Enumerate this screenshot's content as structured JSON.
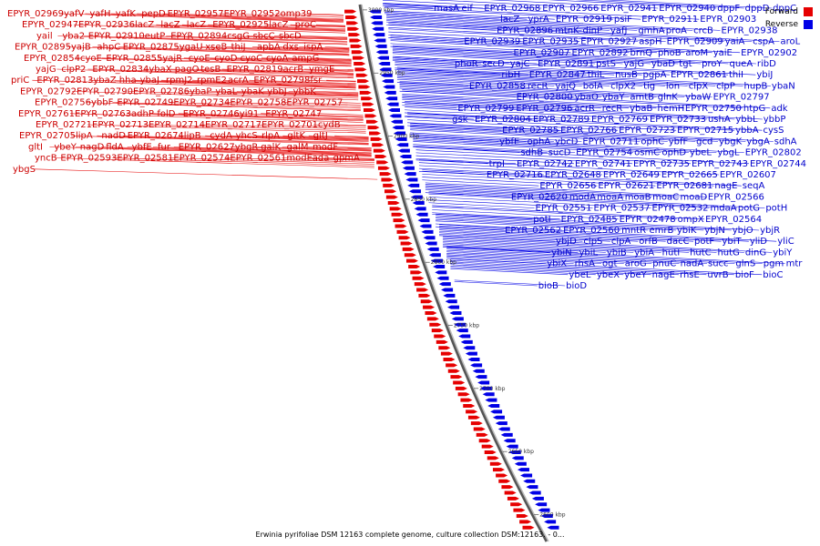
{
  "caption": "Erwinia pyrifoliae DSM 12163 complete genome, culture collection DSM:12163. - 0...",
  "legend": [
    {
      "label": "Forward",
      "color": "#e60000"
    },
    {
      "label": "Reverse",
      "color": "#0000e6"
    }
  ],
  "ticks": [
    "3000 kbp",
    "2950 kbp",
    "2900 kbp",
    "2850 kbp",
    "2800 kbp",
    "2750 kbp",
    "2700 kbp",
    "2650 kbp",
    "2600 kbp"
  ],
  "forward_labels": [
    "EPYR_02969",
    "yafV",
    "yafH",
    "yafK",
    "pepD",
    "EPYR_02957",
    "EPYR_02952",
    "omp39",
    "EPYR_02947",
    "EPYR_02936",
    "lacZ",
    "lacZ",
    "lacZ",
    "EPYR_02925",
    "lacZ",
    "proC",
    "yail",
    "yba2",
    "EPYR_02910",
    "eutP",
    "EPYR_02894",
    "csgG",
    "sbcC",
    "sbcD",
    "EPYR_02895",
    "yajB",
    "ahpC",
    "EPYR_02875",
    "ygaU",
    "xseB",
    "thiJ",
    "apbA",
    "dxs",
    "ispA",
    "EPYR_02854",
    "cyoE",
    "EPYR_02855",
    "yajR",
    "cyoE",
    "cyoD",
    "cyoC",
    "cyoA",
    "ampG",
    "yajG",
    "clpP2",
    "EPYR_02834",
    "ybaX",
    "pagO",
    "tesB",
    "EPYR_02819",
    "acrB",
    "ymgE",
    "priC",
    "EPYR_02813",
    "ybaZ",
    "hha",
    "ybaJ",
    "rpmJ2",
    "rpmE2",
    "acrA",
    "EPYR_02798",
    "fsr",
    "EPYR_02792",
    "EPYR_02790",
    "EPYR_02786",
    "ybaP",
    "ybaL",
    "ybaK",
    "ybbJ",
    "ybbK",
    "EPYR_02756",
    "ybbF",
    "EPYR_02749",
    "EPYR_02734",
    "EPYR_02758",
    "EPYR_02757",
    "EPYR_02761",
    "EPYR_02763",
    "adhP",
    "folD",
    "EPYR_02746",
    "yi91",
    "EPYR_02747",
    "EPYR_02721",
    "EPYR_02713",
    "EPYR_02714",
    "EPYR_02717",
    "EPYR_02701",
    "cydB",
    "EPYR_02705",
    "lipA",
    "nadD",
    "EPYR_02674",
    "lipB",
    "cydA",
    "yhcS",
    "rlpA",
    "gltK",
    "gltJ",
    "gltI",
    "ybeY",
    "nagD",
    "fldA",
    "ybfE",
    "fur",
    "EPYR_02627",
    "ybgR",
    "galK",
    "galM",
    "modF",
    "yncB",
    "EPYR_02593",
    "EPYR_02581",
    "EPYR_02574",
    "EPYR_02561",
    "modE",
    "ada",
    "gpmA",
    "ybgS"
  ],
  "reverse_labels": [
    "masA",
    "eif",
    "EPYR_02968",
    "EPYR_02966",
    "EPYR_02941",
    "EPYR_02940",
    "dppF",
    "dppD",
    "dppC",
    "lacZ",
    "yprA",
    "EPYR_02919",
    "psiF",
    "EPYR_02911",
    "EPYR_02903",
    "EPYR_02896",
    "mtnK",
    "dinP",
    "yafJ",
    "gmhA",
    "proA",
    "crcB",
    "EPYR_02938",
    "EPYR_02939",
    "EPYR_02935",
    "EPYR_02927",
    "aspH",
    "EPYR_02909",
    "yaiA",
    "cspA",
    "aroL",
    "EPYR_02907",
    "EPYR_02892",
    "brnQ",
    "phoB",
    "aroM",
    "yaiE",
    "EPYR_02902",
    "phoR",
    "secD",
    "yajC",
    "EPYR_02891",
    "pstS",
    "yajG",
    "ybaD",
    "tgt",
    "proY",
    "queA",
    "ribD",
    "ribH",
    "EPYR_02847",
    "thiL",
    "nusB",
    "pgpA",
    "EPYR_02861",
    "thiI",
    "ybiJ",
    "EPYR_02858",
    "recR",
    "yajQ",
    "bolA",
    "clpX2",
    "tig",
    "lon",
    "clpX",
    "clpP",
    "hupB",
    "ybaN",
    "EPYR_02800",
    "ybaO",
    "ybaY",
    "amtB",
    "glnK",
    "ybaW",
    "EPYR_02797",
    "EPYR_02799",
    "EPYR_02796",
    "acrR",
    "recR",
    "ybaB",
    "hemH",
    "EPYR_02750",
    "htpG",
    "adk",
    "gsk",
    "EPYR_02804",
    "EPYR_02789",
    "EPYR_02769",
    "EPYR_02733",
    "ushA",
    "ybbL",
    "ybbP",
    "EPYR_02785",
    "EPYR_02766",
    "EPYR_02723",
    "EPYR_02715",
    "ybbA",
    "cysS",
    "ybfE",
    "ophA",
    "ybcD",
    "EPYR_02711",
    "ophC",
    "ybfF",
    "gcd",
    "ybgK",
    "ybgA",
    "sdhA",
    "sdhB",
    "sucD",
    "EPYR_02754",
    "osmC",
    "ophD",
    "ybeL",
    "ybgL",
    "EPYR_02802",
    "trpI",
    "EPYR_02742",
    "EPYR_02741",
    "EPYR_02735",
    "EPYR_02743",
    "EPYR_02744",
    "EPYR_02716",
    "EPYR_02648",
    "EPYR_02649",
    "EPYR_02665",
    "EPYR_02607",
    "EPYR_02656",
    "EPYR_02621",
    "EPYR_02681",
    "nagE",
    "seqA",
    "EPYR_02620",
    "modA",
    "moaA",
    "moaB",
    "moaC",
    "moaD",
    "EPYR_02566",
    "EPYR_02551",
    "EPYR_02537",
    "EPYR_02532",
    "mdaA",
    "potG",
    "potH",
    "potI",
    "EPYR_02485",
    "EPYR_02478",
    "ompX",
    "EPYR_02564",
    "EPYR_02562",
    "EPYR_02560",
    "mntR",
    "emrB",
    "ybiK",
    "ybjN",
    "ybjO",
    "ybjR",
    "ybjD",
    "clpS",
    "clpA",
    "orfB",
    "dacC",
    "potF",
    "ybiT",
    "yliD",
    "yliC",
    "ybiN",
    "ybiL",
    "ybiB",
    "ybiA",
    "hutI",
    "hutC",
    "hutG",
    "dinG",
    "ybiY",
    "ybiX",
    "rhsA",
    "ogt",
    "aroG",
    "pnuC",
    "nadA",
    "succ",
    "glnS",
    "pgm",
    "mtr",
    "ybeL",
    "ybeX",
    "ybeY",
    "nagE",
    "rhsE",
    "uvrB",
    "bioF",
    "bioC",
    "bioB",
    "bioD"
  ]
}
